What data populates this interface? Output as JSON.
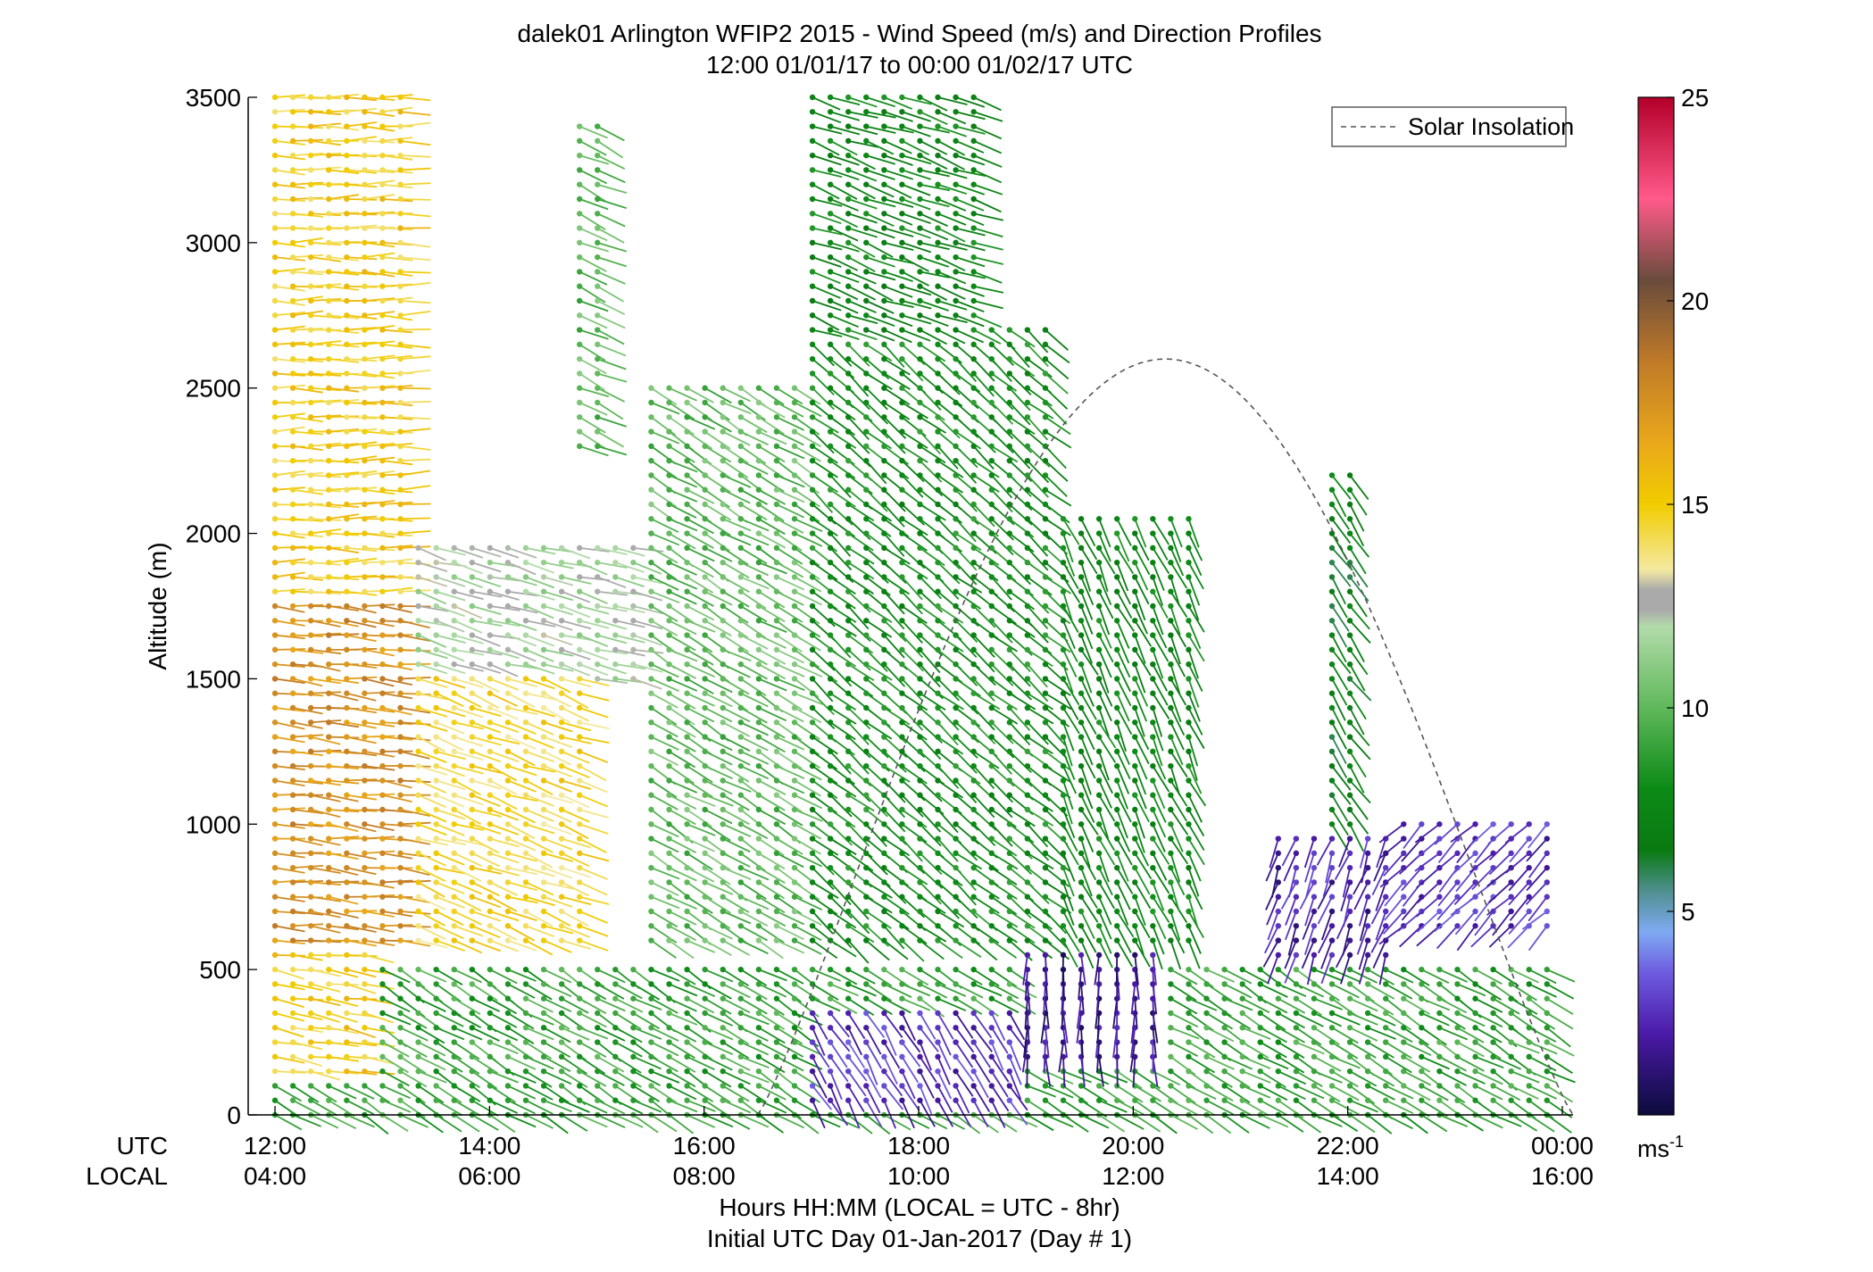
{
  "chart_data": {
    "type": "scatter",
    "subtype": "wind-barb-profile",
    "title": "dalek01 Arlington WFIP2 2015 - Wind Speed (m/s) and Direction Profiles",
    "subtitle": "12:00 01/01/17 to 00:00 01/02/17  UTC",
    "ylabel": "Altitude (m)",
    "xlabel": "Hours HH:MM  (LOCAL = UTC - 8hr)",
    "xlabel2": "Initial UTC Day 01-Jan-2017 (Day # 1)",
    "row_label_utc": "UTC",
    "row_label_local": "LOCAL",
    "xlim": [
      11.75,
      24.1
    ],
    "ylim": [
      0,
      3500
    ],
    "yticks": [
      0,
      500,
      1000,
      1500,
      2000,
      2500,
      3000,
      3500
    ],
    "xticks_utc": [
      {
        "value": 12,
        "label": "12:00"
      },
      {
        "value": 14,
        "label": "14:00"
      },
      {
        "value": 16,
        "label": "16:00"
      },
      {
        "value": 18,
        "label": "18:00"
      },
      {
        "value": 20,
        "label": "20:00"
      },
      {
        "value": 22,
        "label": "22:00"
      },
      {
        "value": 24,
        "label": "00:00"
      }
    ],
    "xticks_local": [
      "04:00",
      "06:00",
      "08:00",
      "10:00",
      "12:00",
      "14:00",
      "16:00"
    ],
    "grid": false,
    "legend": {
      "position": "top-right",
      "entries": [
        {
          "label": "Solar Insolation",
          "style": "dashed",
          "color": "#555555"
        }
      ]
    },
    "solar_insolation": {
      "start": 16.5,
      "peak_time": 20.0,
      "peak_altitude": 2600,
      "end": 24.1
    },
    "colorbar": {
      "unit_label": "ms",
      "unit_superscript": "-1",
      "range": [
        0,
        25
      ],
      "ticks": [
        5,
        10,
        15,
        20,
        25
      ],
      "stops": [
        {
          "v": 0,
          "color": "#0b0b3b"
        },
        {
          "v": 2,
          "color": "#4b1aa8"
        },
        {
          "v": 3.5,
          "color": "#6f5ce0"
        },
        {
          "v": 4.5,
          "color": "#7eaaf2"
        },
        {
          "v": 5.5,
          "color": "#4f8f8f"
        },
        {
          "v": 6.5,
          "color": "#0a7a12"
        },
        {
          "v": 8,
          "color": "#0c8a16"
        },
        {
          "v": 10,
          "color": "#5fb85a"
        },
        {
          "v": 12,
          "color": "#b2dbaa"
        },
        {
          "v": 12.4,
          "color": "#aaaaaa"
        },
        {
          "v": 12.9,
          "color": "#aaaaaa"
        },
        {
          "v": 13.4,
          "color": "#f4e9a0"
        },
        {
          "v": 15,
          "color": "#f1cc00"
        },
        {
          "v": 16.5,
          "color": "#e9a81a"
        },
        {
          "v": 18.5,
          "color": "#c07a28"
        },
        {
          "v": 20.5,
          "color": "#6a4c3c"
        },
        {
          "v": 22.5,
          "color": "#ff5a8a"
        },
        {
          "v": 25,
          "color": "#b3002a"
        }
      ]
    },
    "wind_profile": {
      "profiles_start": 12.0,
      "profiles_end": 24.0,
      "profile_interval_h": 0.167,
      "level_spacing_m": 50,
      "speed_units": "m/s",
      "regions": [
        {
          "time": [
            12.0,
            13.2
          ],
          "alt": [
            1800,
            3500
          ],
          "speed": 15,
          "direction": 270
        },
        {
          "time": [
            12.0,
            13.2
          ],
          "alt": [
            600,
            1800
          ],
          "speed": 17.5,
          "direction": 265
        },
        {
          "time": [
            12.0,
            13.0
          ],
          "alt": [
            150,
            600
          ],
          "speed": 15,
          "direction": 260
        },
        {
          "time": [
            13.2,
            15.0
          ],
          "alt": [
            600,
            1500
          ],
          "speed": 14.5,
          "direction": 250
        },
        {
          "time": [
            13.2,
            15.5
          ],
          "alt": [
            1500,
            1950
          ],
          "speed": 12,
          "direction": 255
        },
        {
          "time": [
            14.8,
            15.1
          ],
          "alt": [
            2300,
            3400
          ],
          "speed": 10,
          "direction": 245
        },
        {
          "time": [
            15.5,
            17.0
          ],
          "alt": [
            600,
            2500
          ],
          "speed": 10,
          "direction": 240
        },
        {
          "time": [
            17.0,
            18.6
          ],
          "alt": [
            2700,
            3500
          ],
          "speed": 7.5,
          "direction": 250
        },
        {
          "time": [
            17.0,
            19.2
          ],
          "alt": [
            600,
            2700
          ],
          "speed": 8,
          "direction": 230
        },
        {
          "time": [
            19.2,
            20.6
          ],
          "alt": [
            600,
            2050
          ],
          "speed": 7.5,
          "direction": 205
        },
        {
          "time": [
            19.0,
            20.3
          ],
          "alt": [
            200,
            600
          ],
          "speed": 1.5,
          "direction": 180
        },
        {
          "time": [
            17.0,
            19.0
          ],
          "alt": [
            50,
            350
          ],
          "speed": 2.5,
          "direction": 210
        },
        {
          "time": [
            21.3,
            22.5
          ],
          "alt": [
            550,
            950
          ],
          "speed": 2,
          "direction": 160
        },
        {
          "time": [
            21.7,
            22.1
          ],
          "alt": [
            950,
            2200
          ],
          "speed": 7,
          "direction": 215
        },
        {
          "time": [
            22.5,
            24.0
          ],
          "alt": [
            650,
            1000
          ],
          "speed": 2.5,
          "direction": 135
        },
        {
          "time": [
            12.0,
            24.0
          ],
          "alt": [
            0,
            500
          ],
          "speed": 9,
          "direction": 240
        }
      ]
    }
  }
}
